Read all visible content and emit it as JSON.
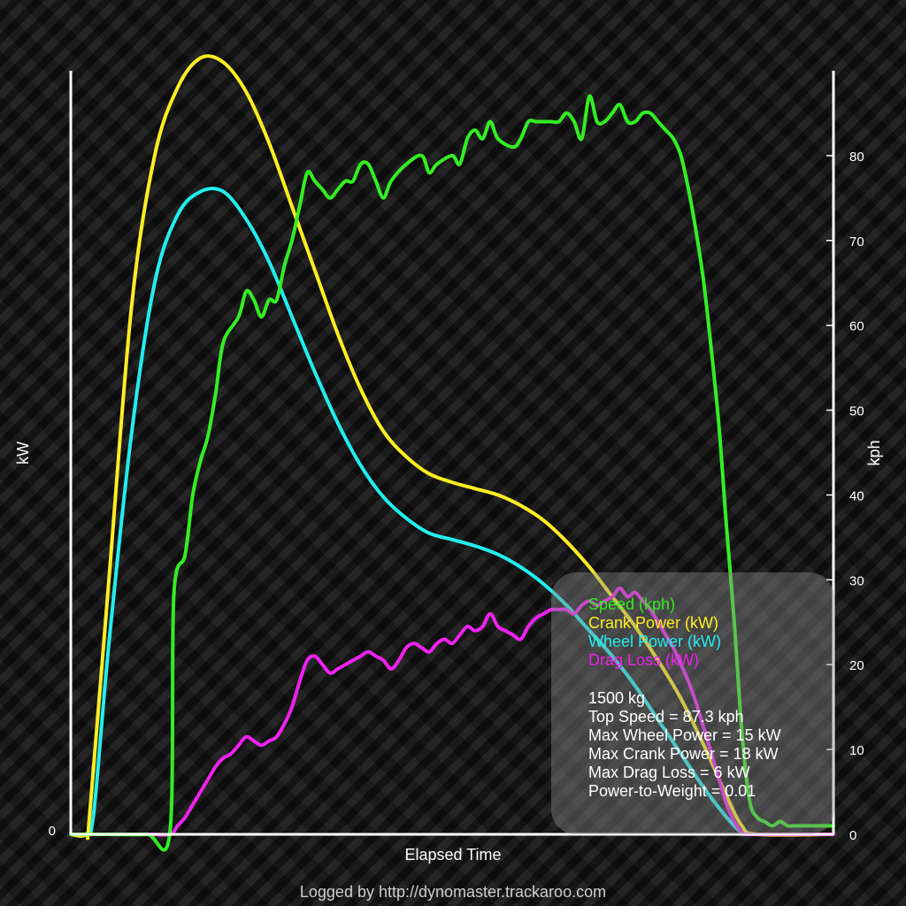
{
  "chart_data": {
    "type": "line",
    "xlabel": "Elapsed Time",
    "ylabel_left": "kW",
    "ylabel_right": "kph",
    "left_axis": {
      "range": [
        0,
        18
      ],
      "ticks": [
        "0"
      ]
    },
    "right_axis": {
      "range": [
        0,
        90
      ],
      "ticks": [
        "0",
        "10",
        "20",
        "30",
        "40",
        "50",
        "60",
        "70",
        "80"
      ]
    },
    "x_range": [
      0,
      100
    ],
    "footer": "Logged by http://dynomaster.trackaroo.com",
    "series": [
      {
        "name": "Speed (kph)",
        "axis": "right",
        "color": "#33ee22",
        "points": [
          [
            0,
            0
          ],
          [
            5,
            0
          ],
          [
            10,
            0
          ],
          [
            13,
            0.3
          ],
          [
            13.5,
            28
          ],
          [
            15,
            33
          ],
          [
            16,
            40
          ],
          [
            17,
            44
          ],
          [
            18,
            47
          ],
          [
            19,
            52
          ],
          [
            20,
            58
          ],
          [
            22,
            61
          ],
          [
            23,
            64
          ],
          [
            24,
            63
          ],
          [
            25,
            61
          ],
          [
            26,
            63
          ],
          [
            27,
            63
          ],
          [
            28,
            67
          ],
          [
            29,
            70
          ],
          [
            30,
            74
          ],
          [
            31,
            78
          ],
          [
            32,
            77
          ],
          [
            33,
            76
          ],
          [
            34,
            75
          ],
          [
            35,
            76
          ],
          [
            36,
            77
          ],
          [
            37,
            77
          ],
          [
            38,
            79
          ],
          [
            39,
            79
          ],
          [
            40,
            77
          ],
          [
            41,
            75
          ],
          [
            42,
            77
          ],
          [
            44,
            79
          ],
          [
            46,
            80
          ],
          [
            47,
            78
          ],
          [
            48,
            79
          ],
          [
            50,
            80
          ],
          [
            51,
            79
          ],
          [
            52,
            82
          ],
          [
            53,
            83
          ],
          [
            54,
            82
          ],
          [
            55,
            84
          ],
          [
            56,
            82
          ],
          [
            58,
            81
          ],
          [
            59,
            82
          ],
          [
            60,
            84
          ],
          [
            61,
            84
          ],
          [
            62,
            84
          ],
          [
            63,
            84
          ],
          [
            64,
            84
          ],
          [
            65,
            85
          ],
          [
            66,
            84
          ],
          [
            67,
            82
          ],
          [
            68,
            87
          ],
          [
            69,
            84
          ],
          [
            70,
            84
          ],
          [
            71,
            85
          ],
          [
            72,
            86
          ],
          [
            73,
            84
          ],
          [
            74,
            84
          ],
          [
            75,
            85
          ],
          [
            76,
            85
          ],
          [
            77,
            84
          ],
          [
            78,
            83
          ],
          [
            79,
            82
          ],
          [
            80,
            80
          ],
          [
            81,
            76
          ],
          [
            82,
            71
          ],
          [
            83,
            65
          ],
          [
            84,
            57
          ],
          [
            85,
            48
          ],
          [
            86,
            36
          ],
          [
            87,
            25
          ],
          [
            88,
            12
          ],
          [
            89,
            4
          ],
          [
            90,
            2
          ],
          [
            91,
            1.5
          ],
          [
            92,
            1
          ],
          [
            93,
            1.5
          ],
          [
            94,
            1
          ],
          [
            95,
            1
          ],
          [
            100,
            1
          ]
        ]
      },
      {
        "name": "Crank Power (kW)",
        "axis": "left",
        "color": "#ffee22",
        "points": [
          [
            0,
            0
          ],
          [
            2,
            0
          ],
          [
            2.5,
            0.5
          ],
          [
            5,
            6
          ],
          [
            8,
            12.5
          ],
          [
            11,
            16
          ],
          [
            14,
            17.6
          ],
          [
            17,
            18.3
          ],
          [
            20,
            18.2
          ],
          [
            23,
            17.5
          ],
          [
            26,
            16.3
          ],
          [
            29,
            14.8
          ],
          [
            32,
            13.3
          ],
          [
            35,
            11.8
          ],
          [
            38,
            10.5
          ],
          [
            41,
            9.5
          ],
          [
            44,
            8.9
          ],
          [
            47,
            8.5
          ],
          [
            50,
            8.3
          ],
          [
            53,
            8.15
          ],
          [
            56,
            8
          ],
          [
            59,
            7.75
          ],
          [
            62,
            7.4
          ],
          [
            65,
            6.9
          ],
          [
            68,
            6.3
          ],
          [
            71,
            5.6
          ],
          [
            74,
            4.9
          ],
          [
            77,
            4.1
          ],
          [
            80,
            3.2
          ],
          [
            83,
            2.1
          ],
          [
            86,
            0.9
          ],
          [
            88,
            0.2
          ],
          [
            90,
            0
          ],
          [
            100,
            0
          ]
        ]
      },
      {
        "name": "Wheel Power (kW)",
        "axis": "left",
        "color": "#22eeee",
        "points": [
          [
            0,
            0
          ],
          [
            2,
            0
          ],
          [
            3,
            0.5
          ],
          [
            5,
            4.5
          ],
          [
            8,
            9.5
          ],
          [
            11,
            13
          ],
          [
            14,
            14.6
          ],
          [
            17,
            15.15
          ],
          [
            20,
            15.15
          ],
          [
            23,
            14.5
          ],
          [
            26,
            13.5
          ],
          [
            29,
            12.2
          ],
          [
            32,
            10.9
          ],
          [
            35,
            9.7
          ],
          [
            38,
            8.7
          ],
          [
            41,
            7.95
          ],
          [
            44,
            7.45
          ],
          [
            47,
            7.1
          ],
          [
            50,
            6.95
          ],
          [
            53,
            6.8
          ],
          [
            56,
            6.6
          ],
          [
            59,
            6.3
          ],
          [
            62,
            5.9
          ],
          [
            65,
            5.4
          ],
          [
            68,
            4.8
          ],
          [
            71,
            4.2
          ],
          [
            74,
            3.5
          ],
          [
            77,
            2.7
          ],
          [
            80,
            1.9
          ],
          [
            83,
            1.1
          ],
          [
            86,
            0.4
          ],
          [
            88,
            0.05
          ],
          [
            90,
            0
          ],
          [
            100,
            0
          ]
        ]
      },
      {
        "name": "Drag Loss (kW)",
        "axis": "left",
        "color": "#ee22ee",
        "points": [
          [
            0,
            0
          ],
          [
            10,
            0
          ],
          [
            13,
            0
          ],
          [
            14,
            0.2
          ],
          [
            15,
            0.4
          ],
          [
            16,
            0.7
          ],
          [
            17,
            1.0
          ],
          [
            18,
            1.3
          ],
          [
            19,
            1.6
          ],
          [
            20,
            1.8
          ],
          [
            21,
            1.9
          ],
          [
            22,
            2.1
          ],
          [
            23,
            2.3
          ],
          [
            24,
            2.2
          ],
          [
            25,
            2.1
          ],
          [
            26,
            2.2
          ],
          [
            27,
            2.3
          ],
          [
            28,
            2.6
          ],
          [
            29,
            3.0
          ],
          [
            30,
            3.6
          ],
          [
            31,
            4.1
          ],
          [
            32,
            4.2
          ],
          [
            33,
            4.0
          ],
          [
            34,
            3.8
          ],
          [
            35,
            3.9
          ],
          [
            36,
            4.0
          ],
          [
            37,
            4.1
          ],
          [
            38,
            4.2
          ],
          [
            39,
            4.3
          ],
          [
            40,
            4.2
          ],
          [
            41,
            4.1
          ],
          [
            42,
            3.9
          ],
          [
            43,
            4.1
          ],
          [
            44,
            4.4
          ],
          [
            45,
            4.5
          ],
          [
            46,
            4.4
          ],
          [
            47,
            4.3
          ],
          [
            48,
            4.5
          ],
          [
            49,
            4.6
          ],
          [
            50,
            4.5
          ],
          [
            51,
            4.7
          ],
          [
            52,
            4.9
          ],
          [
            53,
            4.8
          ],
          [
            54,
            4.9
          ],
          [
            55,
            5.2
          ],
          [
            56,
            4.9
          ],
          [
            57,
            4.8
          ],
          [
            58,
            4.7
          ],
          [
            59,
            4.6
          ],
          [
            60,
            4.9
          ],
          [
            61,
            5.1
          ],
          [
            62,
            5.2
          ],
          [
            63,
            5.3
          ],
          [
            64,
            5.3
          ],
          [
            65,
            5.3
          ],
          [
            66,
            5.2
          ],
          [
            67,
            5.4
          ],
          [
            68,
            5.5
          ],
          [
            69,
            5.4
          ],
          [
            70,
            5.5
          ],
          [
            71,
            5.6
          ],
          [
            72,
            5.8
          ],
          [
            73,
            5.6
          ],
          [
            74,
            5.7
          ],
          [
            75,
            5.5
          ],
          [
            76,
            5.3
          ],
          [
            77,
            5.0
          ],
          [
            78,
            4.7
          ],
          [
            79,
            4.4
          ],
          [
            80,
            4.0
          ],
          [
            81,
            3.6
          ],
          [
            82,
            3.1
          ],
          [
            83,
            2.5
          ],
          [
            84,
            1.9
          ],
          [
            85,
            1.3
          ],
          [
            86,
            0.7
          ],
          [
            87,
            0.3
          ],
          [
            88,
            0.05
          ],
          [
            89,
            0
          ],
          [
            100,
            0
          ]
        ]
      }
    ],
    "legend": {
      "placement": "bottom-right",
      "stats": [
        "1500 kg",
        "Top Speed = 87.3 kph",
        "Max Wheel Power = 15 kW",
        "Max Crank Power = 18 kW",
        "Max Drag Loss = 6 kW",
        "Power-to-Weight = 0.01"
      ]
    }
  }
}
